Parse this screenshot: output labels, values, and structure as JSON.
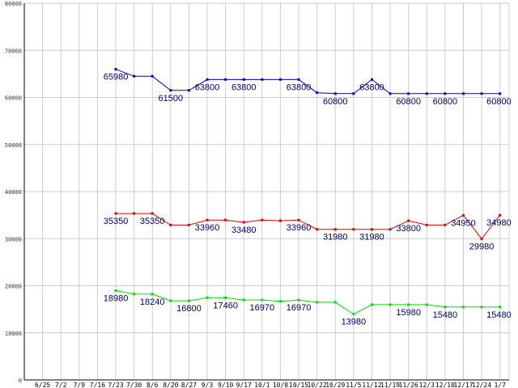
{
  "chart_data": {
    "type": "line",
    "title": "",
    "xlabel": "",
    "ylabel": "",
    "ylim": [
      0,
      80000
    ],
    "yticks": [
      0,
      10000,
      20000,
      30000,
      40000,
      50000,
      60000,
      70000,
      80000
    ],
    "grid": true,
    "legend": "none",
    "x": [
      "6/25",
      "7/2",
      "7/9",
      "7/16",
      "7/23",
      "7/30",
      "8/6",
      "8/20",
      "8/27",
      "9/3",
      "9/10",
      "9/17",
      "10/1",
      "10/8",
      "10/15",
      "10/22",
      "10/29",
      "11/5",
      "11/12",
      "11/19",
      "11/26",
      "12/3",
      "12/10",
      "12/17",
      "12/24",
      "1/7"
    ],
    "xtick_labels": [
      "6/25",
      "7/2",
      "7/9",
      "7/16",
      "7/23",
      "7/30",
      "8/6",
      "8/20",
      "8/27",
      "9/3",
      "9/10",
      "9/17",
      "10/1",
      "10/8",
      "10/15",
      "10/22",
      "10/29",
      "11/5",
      "11/12",
      "11/19",
      "11/26",
      "12/3",
      "12/10",
      "12/17",
      "12/24",
      "1/7"
    ],
    "series": [
      {
        "color": "#0000cc",
        "values": [
          null,
          null,
          null,
          null,
          65980,
          64500,
          64500,
          61500,
          61500,
          63800,
          63800,
          63800,
          63800,
          63800,
          63800,
          61000,
          60800,
          60800,
          63800,
          60800,
          60800,
          60800,
          60800,
          60800,
          60800,
          60800
        ],
        "data_labels": [
          {
            "index": 4,
            "text": "65980"
          },
          {
            "index": 7,
            "text": "61500"
          },
          {
            "index": 9,
            "text": "63800"
          },
          {
            "index": 11,
            "text": "63800"
          },
          {
            "index": 14,
            "text": "63800"
          },
          {
            "index": 16,
            "text": "60800"
          },
          {
            "index": 18,
            "text": "63800"
          },
          {
            "index": 20,
            "text": "60800"
          },
          {
            "index": 22,
            "text": "60800"
          },
          {
            "index": 25,
            "text": "60800"
          }
        ]
      },
      {
        "color": "#dd0000",
        "values": [
          null,
          null,
          null,
          null,
          35350,
          35350,
          35350,
          32900,
          32900,
          33960,
          33960,
          33480,
          33960,
          33800,
          33960,
          31980,
          31980,
          31980,
          31980,
          31980,
          33800,
          32900,
          32900,
          34950,
          29980,
          34980
        ],
        "data_labels": [
          {
            "index": 4,
            "text": "35350"
          },
          {
            "index": 6,
            "text": "35350"
          },
          {
            "index": 9,
            "text": "33960"
          },
          {
            "index": 11,
            "text": "33480"
          },
          {
            "index": 14,
            "text": "33960"
          },
          {
            "index": 16,
            "text": "31980"
          },
          {
            "index": 18,
            "text": "31980"
          },
          {
            "index": 20,
            "text": "33800"
          },
          {
            "index": 23,
            "text": "34950"
          },
          {
            "index": 24,
            "text": "29980"
          },
          {
            "index": 25,
            "text": "34980"
          }
        ]
      },
      {
        "color": "#00dd00",
        "values": [
          null,
          null,
          null,
          null,
          18980,
          18240,
          18240,
          16800,
          16800,
          17460,
          17460,
          16970,
          16970,
          16700,
          16970,
          16500,
          16500,
          13980,
          15980,
          15980,
          15980,
          15980,
          15480,
          15480,
          15480,
          15480
        ],
        "data_labels": [
          {
            "index": 4,
            "text": "18980"
          },
          {
            "index": 6,
            "text": "18240"
          },
          {
            "index": 8,
            "text": "16800"
          },
          {
            "index": 10,
            "text": "17460"
          },
          {
            "index": 12,
            "text": "16970"
          },
          {
            "index": 14,
            "text": "16970"
          },
          {
            "index": 17,
            "text": "13980"
          },
          {
            "index": 20,
            "text": "15980"
          },
          {
            "index": 22,
            "text": "15480"
          },
          {
            "index": 25,
            "text": "15480"
          }
        ]
      }
    ]
  }
}
